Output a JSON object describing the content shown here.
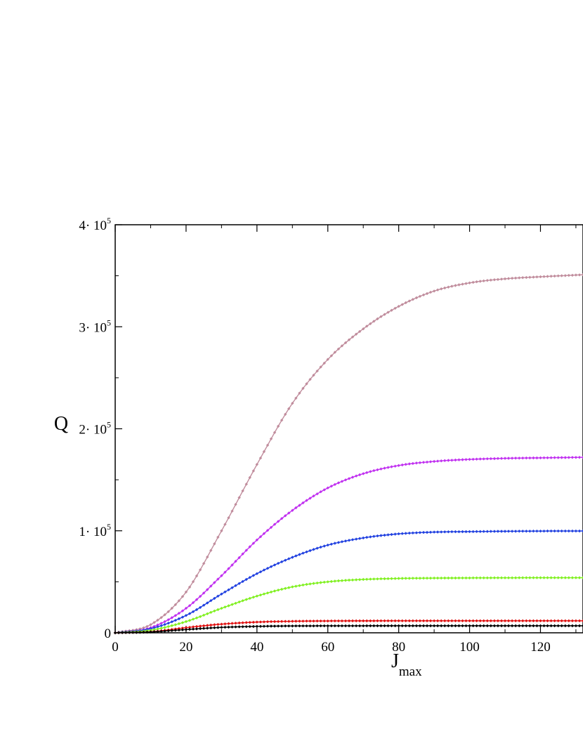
{
  "chart_data": {
    "type": "line",
    "title": "",
    "xlabel": "J",
    "xlabel_sub": "max",
    "ylabel": "Q",
    "xlim": [
      0,
      132
    ],
    "ylim": [
      0,
      400000
    ],
    "x_ticks": [
      0,
      20,
      40,
      60,
      80,
      100,
      120
    ],
    "x_tick_labels": [
      "0",
      "20",
      "40",
      "60",
      "80",
      "100",
      "120"
    ],
    "y_ticks": [
      0,
      100000,
      200000,
      300000,
      400000
    ],
    "y_tick_labels": [
      {
        "base": "0",
        "exp": ""
      },
      {
        "base": "1· 10",
        "exp": "5"
      },
      {
        "base": "2· 10",
        "exp": "5"
      },
      {
        "base": "3· 10",
        "exp": "5"
      },
      {
        "base": "4· 10",
        "exp": "5"
      }
    ],
    "grid": false,
    "legend": "none",
    "series": [
      {
        "color": "#c08c9c",
        "marker": "diamond",
        "x": [
          0,
          10,
          20,
          30,
          40,
          50,
          60,
          70,
          80,
          90,
          100,
          110,
          120,
          132
        ],
        "y": [
          0,
          8000,
          40000,
          100000,
          165000,
          225000,
          268000,
          298000,
          320000,
          335000,
          343000,
          347000,
          349000,
          351000
        ]
      },
      {
        "color": "#c030f0",
        "marker": "diamond",
        "x": [
          0,
          10,
          20,
          30,
          40,
          50,
          60,
          70,
          80,
          90,
          100,
          110,
          120,
          132
        ],
        "y": [
          0,
          5000,
          24000,
          56000,
          91000,
          120000,
          142000,
          156000,
          164000,
          168000,
          170000,
          171000,
          171500,
          172000
        ]
      },
      {
        "color": "#2040e0",
        "marker": "diamond",
        "x": [
          0,
          10,
          20,
          30,
          40,
          50,
          60,
          70,
          80,
          90,
          100,
          110,
          120,
          132
        ],
        "y": [
          0,
          4000,
          17000,
          38000,
          58000,
          74000,
          86000,
          93000,
          97000,
          98700,
          99200,
          99500,
          99700,
          99800
        ]
      },
      {
        "color": "#80f020",
        "marker": "diamond",
        "x": [
          0,
          10,
          20,
          30,
          40,
          50,
          60,
          70,
          80,
          90,
          100,
          110,
          120,
          132
        ],
        "y": [
          0,
          2500,
          11000,
          24000,
          36000,
          45000,
          50000,
          52300,
          53300,
          53600,
          53800,
          53900,
          54000,
          54000
        ]
      },
      {
        "color": "#e01010",
        "marker": "diamond",
        "x": [
          0,
          10,
          20,
          30,
          40,
          50,
          60,
          70,
          80,
          90,
          100,
          110,
          120,
          132
        ],
        "y": [
          0,
          1000,
          5000,
          8500,
          10500,
          11300,
          11600,
          11700,
          11800,
          11800,
          11800,
          11800,
          11800,
          11800
        ]
      },
      {
        "color": "#000000",
        "marker": "diamond",
        "x": [
          0,
          10,
          20,
          30,
          40,
          50,
          60,
          70,
          80,
          90,
          100,
          110,
          120,
          132
        ],
        "y": [
          0,
          800,
          3200,
          5300,
          6300,
          6700,
          6800,
          6850,
          6900,
          6900,
          6900,
          6900,
          6900,
          6900
        ]
      }
    ]
  }
}
